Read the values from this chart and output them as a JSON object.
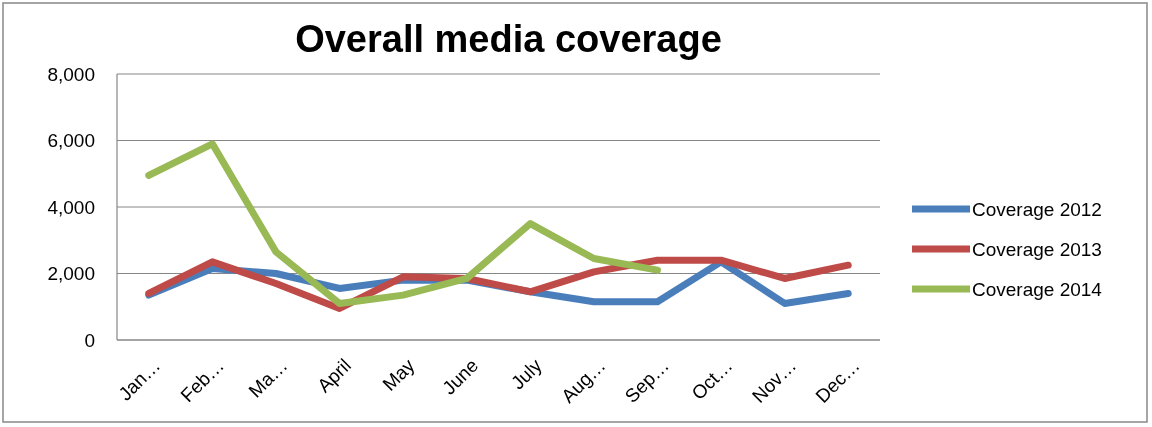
{
  "chart_data": {
    "type": "line",
    "title": "Overall media coverage",
    "categories": [
      "Jan…",
      "Feb…",
      "Ma…",
      "April",
      "May",
      "June",
      "July",
      "Aug…",
      "Sep…",
      "Oct…",
      "Nov…",
      "Dec…"
    ],
    "series": [
      {
        "name": "Coverage 2012",
        "color": "#4a7ebb",
        "values": [
          1350,
          2150,
          2000,
          1550,
          1800,
          1800,
          1450,
          1150,
          1150,
          2350,
          1100,
          1400
        ]
      },
      {
        "name": "Coverage 2013",
        "color": "#be4b48",
        "values": [
          1400,
          2350,
          1700,
          950,
          1900,
          1850,
          1450,
          2050,
          2400,
          2400,
          1850,
          2250
        ]
      },
      {
        "name": "Coverage 2014",
        "color": "#98b954",
        "values": [
          4950,
          5900,
          2650,
          1100,
          1350,
          1850,
          3500,
          2450,
          2100,
          null,
          null,
          null
        ]
      }
    ],
    "ylim": [
      0,
      8000
    ],
    "yticks": [
      {
        "value": 0,
        "label": "0"
      },
      {
        "value": 2000,
        "label": "2,000"
      },
      {
        "value": 4000,
        "label": "4,000"
      },
      {
        "value": 6000,
        "label": "6,000"
      },
      {
        "value": 8000,
        "label": "8,000"
      }
    ],
    "grid": "y",
    "legend": "right",
    "marker": "none",
    "line_style": "solid"
  }
}
